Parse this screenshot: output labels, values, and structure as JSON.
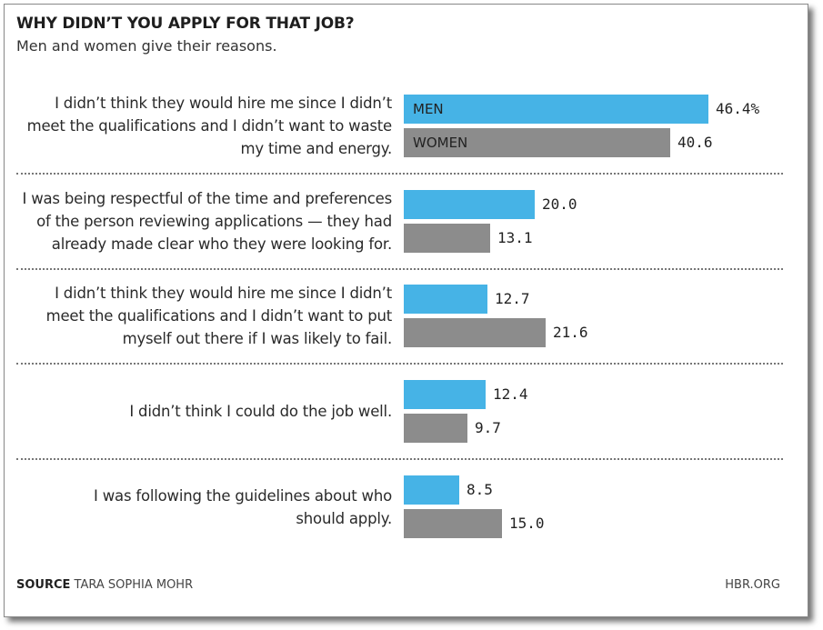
{
  "chart_data": {
    "type": "bar",
    "orientation": "horizontal",
    "title": "WHY DIDN’T YOU APPLY FOR THAT JOB?",
    "subtitle": "Men and women give their reasons.",
    "categories": [
      [
        "I didn’t think they would hire me since I didn’t",
        "meet the qualifications and I didn’t want to waste",
        "my time and energy."
      ],
      [
        "I was being respectful of the time and preferences",
        "of the person reviewing applications — they had",
        "already made clear who they were looking for."
      ],
      [
        "I didn’t think they would hire me since I didn’t",
        "meet the qualifications and I didn’t want to put",
        "myself out there if I was likely to fail."
      ],
      [
        "I didn’t think I could do the job well."
      ],
      [
        "I was following the guidelines about who",
        "should apply."
      ]
    ],
    "series": [
      {
        "name": "MEN",
        "color": "#46b3e6",
        "values": [
          46.4,
          20.0,
          12.7,
          12.4,
          8.5
        ],
        "labels": [
          "46.4%",
          "20.0",
          "12.7",
          "12.4",
          "8.5"
        ]
      },
      {
        "name": "WOMEN",
        "color": "#8c8c8c",
        "values": [
          40.6,
          13.1,
          21.6,
          9.7,
          15.0
        ],
        "labels": [
          "40.6",
          "13.1",
          "21.6",
          "9.7",
          "15.0"
        ]
      }
    ],
    "xlim": [
      0,
      46.4
    ],
    "legend": "inline in first pair of bars"
  },
  "footer": {
    "source_label": "SOURCE",
    "source_text": "TARA SOPHIA MOHR",
    "brand": "HBR.ORG"
  }
}
